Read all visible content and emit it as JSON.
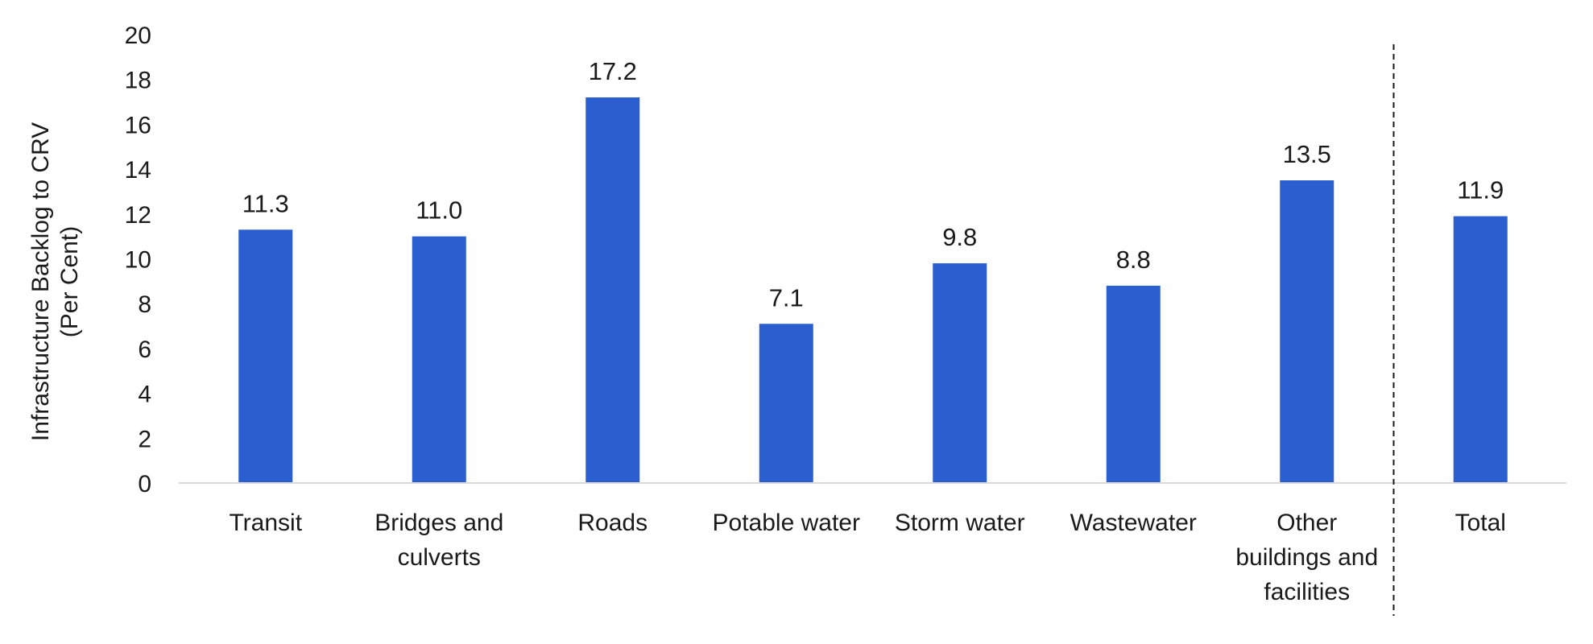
{
  "chart_data": {
    "type": "bar",
    "categories": [
      [
        "Transit"
      ],
      [
        "Bridges and",
        "culverts"
      ],
      [
        "Roads"
      ],
      [
        "Potable water"
      ],
      [
        "Storm water"
      ],
      [
        "Wastewater"
      ],
      [
        "Other",
        "buildings and",
        "facilities"
      ],
      [
        "Total"
      ]
    ],
    "values": [
      11.3,
      11.0,
      17.2,
      7.1,
      9.8,
      8.8,
      13.5,
      11.9
    ],
    "data_labels": [
      "11.3",
      "11.0",
      "17.2",
      "7.1",
      "9.8",
      "8.8",
      "13.5",
      "11.9"
    ],
    "ylabel": [
      "Infrastructure Backlog to CRV",
      "(Per Cent)"
    ],
    "ylim": [
      0,
      20
    ],
    "yticks": [
      0,
      2,
      4,
      6,
      8,
      10,
      12,
      14,
      16,
      18,
      20
    ],
    "grid": false,
    "bar_color": "#2b5fd0",
    "axis_color": "#d9d9d9",
    "separator_before_category": 7
  }
}
